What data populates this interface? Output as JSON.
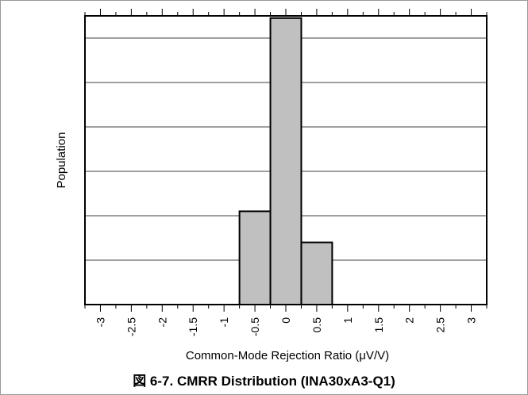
{
  "chart_data": {
    "type": "bar",
    "xlabel": "Common-Mode Rejection Ratio (μV/V)",
    "ylabel": "Population",
    "x_ticks": [
      "-3",
      "-2.5",
      "-2",
      "-1.5",
      "-1",
      "-0.5",
      "0",
      "0.5",
      "1",
      "1.5",
      "2",
      "2.5",
      "3"
    ],
    "xlim": [
      -3.25,
      3.25
    ],
    "ylim": [
      0,
      6.5
    ],
    "grid": true,
    "bins": [
      {
        "x0": -0.75,
        "x1": -0.25,
        "value": 2.1
      },
      {
        "x0": -0.25,
        "x1": 0.25,
        "value": 6.45
      },
      {
        "x0": 0.25,
        "x1": 0.75,
        "value": 1.4
      }
    ],
    "bar_fill": "#c0c0c0",
    "bar_stroke": "#000000"
  },
  "figure": {
    "caption_prefix": "図",
    "caption_text": " 6-7. CMRR Distribution (INA30xA3-Q1)"
  }
}
